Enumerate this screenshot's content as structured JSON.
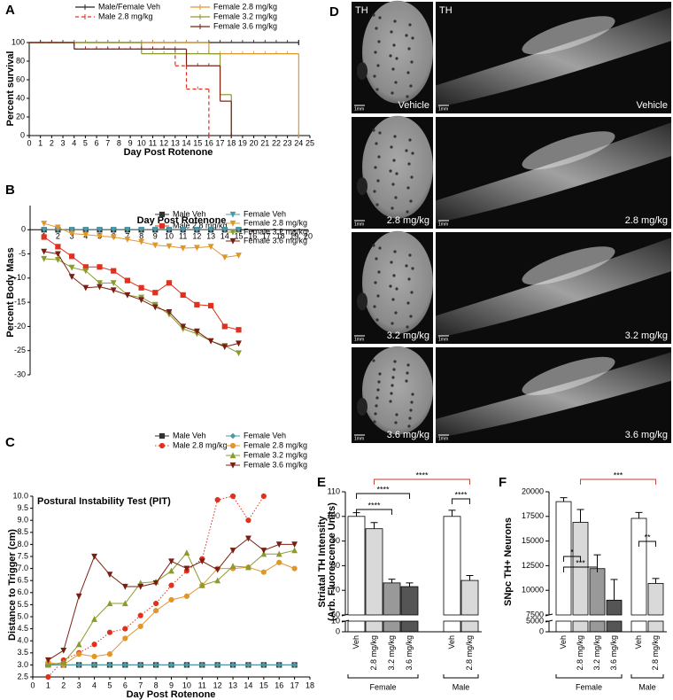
{
  "chart_data": [
    {
      "panel": "A",
      "type": "step",
      "xlabel": "Day Post Rotenone",
      "ylabel": "Percent survival",
      "xlim": [
        0,
        25
      ],
      "xticks": [
        0,
        1,
        2,
        3,
        4,
        5,
        6,
        7,
        8,
        9,
        10,
        11,
        12,
        13,
        14,
        15,
        16,
        17,
        18,
        19,
        20,
        21,
        22,
        23,
        24,
        25
      ],
      "ylim": [
        0,
        100
      ],
      "yticks": [
        0,
        20,
        40,
        60,
        80,
        100
      ],
      "series": [
        {
          "name": "Male/Female Veh",
          "color": "#222222",
          "x": [
            0,
            24
          ],
          "values": [
            100,
            100
          ]
        },
        {
          "name": "Male 2.8 mg/kg",
          "color": "#e0301e",
          "linestyle": "dashed",
          "x": [
            0,
            4,
            13,
            14,
            16
          ],
          "values": [
            100,
            93,
            75,
            50,
            0
          ]
        },
        {
          "name": "Female 2.8 mg/kg",
          "color": "#e0962a",
          "x": [
            0,
            16,
            24
          ],
          "values": [
            100,
            88,
            0
          ]
        },
        {
          "name": "Female 3.2 mg/kg",
          "color": "#8c9a2e",
          "x": [
            0,
            10,
            17,
            18
          ],
          "values": [
            100,
            88,
            44,
            0
          ]
        },
        {
          "name": "Female 3.6 mg/kg",
          "color": "#7b1e14",
          "x": [
            0,
            4,
            14,
            17,
            18
          ],
          "values": [
            100,
            93,
            75,
            37,
            0
          ]
        }
      ]
    },
    {
      "panel": "B",
      "type": "line",
      "xlabel": "Day Post Rotenone",
      "ylabel": "Percent Body Mass",
      "x": [
        1,
        2,
        3,
        4,
        5,
        6,
        7,
        8,
        9,
        10,
        11,
        12,
        13,
        14,
        15
      ],
      "xlim": [
        0,
        20
      ],
      "xticks": [
        1,
        2,
        3,
        4,
        5,
        6,
        7,
        8,
        9,
        10,
        11,
        12,
        13,
        14,
        15,
        16,
        17,
        18,
        19,
        20
      ],
      "ylim": [
        -30,
        5
      ],
      "yticks": [
        -30,
        -25,
        -20,
        -15,
        -10,
        -5,
        0
      ],
      "series": [
        {
          "name": "Male Veh",
          "color": "#333333",
          "marker": "square",
          "values": [
            0,
            0,
            0,
            0,
            0,
            0,
            0,
            0,
            0,
            0,
            0,
            0,
            0,
            0,
            0
          ]
        },
        {
          "name": "Male 2.8 mg/kg",
          "color": "#e0301e",
          "marker": "square",
          "values": [
            -1.5,
            -3.5,
            -5.5,
            -7.7,
            -7.7,
            -8.5,
            -10.5,
            -12,
            -13,
            -11,
            -13.5,
            -15.5,
            -15.7,
            -20,
            -20.7
          ]
        },
        {
          "name": "Female Veh",
          "color": "#4a9aa8",
          "marker": "triangle-down",
          "values": [
            0,
            0,
            0,
            0,
            0,
            0,
            0,
            0,
            0,
            0,
            0,
            0,
            0,
            0,
            0
          ]
        },
        {
          "name": "Female 2.8 mg/kg",
          "color": "#e0962a",
          "marker": "triangle-down",
          "values": [
            1.3,
            0.5,
            -0.8,
            -1,
            -1.3,
            -1.5,
            -2,
            -2.5,
            -3.2,
            -3.4,
            -3.8,
            -3.7,
            -3.5,
            -5.7,
            -5.3
          ]
        },
        {
          "name": "Female 3.2 mg/kg",
          "color": "#8c9a2e",
          "marker": "triangle-down",
          "values": [
            -6,
            -6.2,
            -7.8,
            -8.5,
            -11,
            -11,
            -13.5,
            -14,
            -15.5,
            -17.5,
            -20.5,
            -21.5,
            -23,
            -24,
            -25.5
          ]
        },
        {
          "name": "Female 3.6 mg/kg",
          "color": "#7b1e14",
          "marker": "triangle-down",
          "values": [
            -4.5,
            -5,
            -9.7,
            -12,
            -11.8,
            -12.5,
            -13.5,
            -14.5,
            -16,
            -17,
            -20,
            -21,
            -23,
            -24.2,
            -23.5
          ]
        }
      ]
    },
    {
      "panel": "C",
      "type": "line",
      "title": "Postural Instability Test (PIT)",
      "xlabel": "Day Post Rotenone",
      "ylabel": "Distance to Trigger (cm)",
      "x": [
        1,
        2,
        3,
        4,
        5,
        6,
        7,
        8,
        9,
        10,
        11,
        12,
        13,
        14,
        15,
        16,
        17
      ],
      "xlim": [
        0,
        18
      ],
      "xticks": [
        0,
        1,
        2,
        3,
        4,
        5,
        6,
        7,
        8,
        9,
        10,
        11,
        12,
        13,
        14,
        15,
        16,
        17,
        18
      ],
      "ylim": [
        2.5,
        10
      ],
      "yticks": [
        2.5,
        {
          "value": 3,
          "label": "3.0"
        },
        3.5,
        {
          "value": 4,
          "label": "4.0"
        },
        4.5,
        {
          "value": 5,
          "label": "5.0"
        },
        5.5,
        {
          "value": 6,
          "label": "6.0"
        },
        6.5,
        {
          "value": 7,
          "label": "7.0"
        },
        7.5,
        {
          "value": 8,
          "label": "8.0"
        },
        8.5,
        {
          "value": 9,
          "label": "9.0"
        },
        9.5,
        {
          "value": 10,
          "label": "10.0"
        }
      ],
      "series": [
        {
          "name": "Male Veh",
          "color": "#333333",
          "marker": "square",
          "values": [
            3,
            3,
            3,
            3,
            3,
            3,
            3,
            3,
            3,
            3,
            3,
            3,
            3,
            3,
            3,
            3,
            3
          ]
        },
        {
          "name": "Male 2.8 mg/kg",
          "color": "#e0301e",
          "marker": "circle",
          "linestyle": "dotted",
          "values": [
            2.5,
            3.2,
            3.5,
            3.85,
            4.35,
            4.5,
            5.05,
            5.55,
            6.3,
            6.9,
            7.4,
            9.85,
            10,
            9,
            10,
            null,
            null
          ]
        },
        {
          "name": "Female Veh",
          "color": "#4a9aa8",
          "marker": "diamond",
          "values": [
            3,
            3,
            3,
            3,
            3,
            3,
            3,
            3,
            3,
            3,
            3,
            3,
            3,
            3,
            3,
            3,
            3
          ]
        },
        {
          "name": "Female 2.8 mg/kg",
          "color": "#e0962a",
          "marker": "circle",
          "values": [
            3.1,
            3,
            3.45,
            3.35,
            3.45,
            4.1,
            4.6,
            5.25,
            5.7,
            5.85,
            6.3,
            7,
            7,
            7.05,
            6.85,
            7.25,
            7
          ]
        },
        {
          "name": "Female 3.2 mg/kg",
          "color": "#8c9a2e",
          "marker": "triangle-up",
          "values": [
            3,
            3.1,
            3.85,
            4.9,
            5.55,
            5.55,
            6.4,
            6.45,
            6.9,
            7.65,
            6.3,
            6.5,
            7.1,
            7.05,
            7.6,
            7.6,
            7.75
          ]
        },
        {
          "name": "Female 3.6 mg/kg",
          "color": "#7b1e14",
          "marker": "triangle-down",
          "values": [
            3.2,
            3.6,
            5.85,
            7.5,
            6.75,
            6.25,
            6.25,
            6.4,
            7.3,
            7,
            7.3,
            6.95,
            7.75,
            8.25,
            7.75,
            8,
            8
          ]
        }
      ]
    },
    {
      "panel": "E",
      "type": "bar",
      "ylabel": [
        "Striatal TH Intensity",
        "(Arb. Fluorescence Units)"
      ],
      "ylim": [
        0,
        110
      ],
      "ybreak": [
        10,
        60
      ],
      "yticks": [
        0,
        10,
        60,
        70,
        80,
        90,
        100,
        110
      ],
      "groups": [
        {
          "name": "Female",
          "categories": [
            "Veh",
            "2.8 mg/kg",
            "3.2 mg/kg",
            "3.6 mg/kg"
          ],
          "values": [
            100,
            95,
            73,
            71.5
          ],
          "errors": [
            1.5,
            2.5,
            1.5,
            1.5
          ],
          "colors": [
            "#ffffff",
            "#d9d9d9",
            "#999999",
            "#555555"
          ]
        },
        {
          "name": "Male",
          "categories": [
            "Veh",
            "2.8 mg/kg"
          ],
          "values": [
            100,
            74
          ],
          "errors": [
            2.5,
            2
          ],
          "colors": [
            "#ffffff",
            "#d9d9d9"
          ]
        }
      ],
      "brackets": [
        {
          "from": [
            0,
            0
          ],
          "to": [
            0,
            3
          ],
          "label": "****",
          "color": "#000000"
        },
        {
          "from": [
            0,
            0
          ],
          "to": [
            0,
            2
          ],
          "label": "****",
          "color": "#000000"
        },
        {
          "from": [
            1,
            0
          ],
          "to": [
            1,
            1
          ],
          "label": "****",
          "color": "#000000"
        },
        {
          "from": [
            0,
            1
          ],
          "to": [
            1,
            1
          ],
          "label": "****",
          "color": "#c0392b"
        }
      ]
    },
    {
      "panel": "F",
      "type": "bar",
      "ylabel": [
        "SNpc TH+ Neurons"
      ],
      "ylim": [
        0,
        20000
      ],
      "ybreak": [
        5000,
        7500
      ],
      "yticks": [
        0,
        5000,
        7500,
        10000,
        12500,
        15000,
        17500,
        20000
      ],
      "groups": [
        {
          "name": "Female",
          "categories": [
            "Veh",
            "2.8 mg/kg",
            "3.2 mg/kg",
            "3.6 mg/kg"
          ],
          "values": [
            19000,
            16900,
            12200,
            9000
          ],
          "errors": [
            400,
            1300,
            1400,
            2100
          ],
          "colors": [
            "#ffffff",
            "#d9d9d9",
            "#999999",
            "#555555"
          ]
        },
        {
          "name": "Male",
          "categories": [
            "Veh",
            "2.8 mg/kg"
          ],
          "values": [
            17300,
            10700
          ],
          "errors": [
            600,
            500
          ],
          "colors": [
            "#ffffff",
            "#d9d9d9"
          ]
        }
      ],
      "brackets": [
        {
          "from": [
            0,
            0
          ],
          "to": [
            0,
            1
          ],
          "label": "*",
          "color": "#000000"
        },
        {
          "from": [
            0,
            0
          ],
          "to": [
            0,
            2
          ],
          "label": "***",
          "color": "#000000"
        },
        {
          "from": [
            1,
            0
          ],
          "to": [
            1,
            1
          ],
          "label": "**",
          "color": "#000000"
        },
        {
          "from": [
            0,
            1
          ],
          "to": [
            1,
            1
          ],
          "label": "***",
          "color": "#c0392b"
        }
      ]
    }
  ],
  "images": {
    "panel": "D",
    "stain": "TH",
    "scale_bar": "1mm",
    "rows": [
      "Vehicle",
      "2.8 mg/kg",
      "3.2 mg/kg",
      "3.6 mg/kg"
    ]
  }
}
